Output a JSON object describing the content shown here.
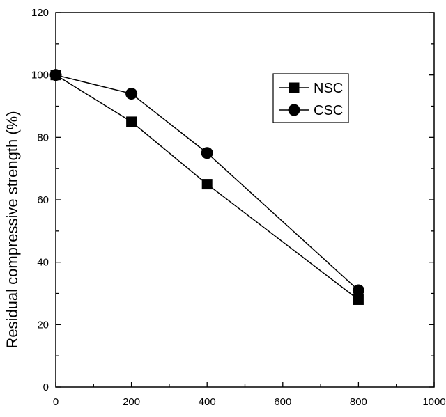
{
  "chart_data": {
    "type": "line",
    "xlabel": "",
    "ylabel": "Residual compressive strength (%)",
    "xlim": [
      0,
      1000
    ],
    "ylim": [
      0,
      120
    ],
    "x_ticks": [
      "0",
      "200",
      "400",
      "600",
      "800",
      "1000"
    ],
    "y_ticks": [
      "0",
      "20",
      "40",
      "60",
      "80",
      "100",
      "120"
    ],
    "grid": false,
    "legend_position": "top-right",
    "series": [
      {
        "name": "NSC",
        "marker": "square",
        "x": [
          0,
          200,
          400,
          800
        ],
        "y": [
          100,
          85,
          65,
          28
        ]
      },
      {
        "name": "CSC",
        "marker": "circle",
        "x": [
          0,
          200,
          400,
          800
        ],
        "y": [
          100,
          94,
          75,
          31
        ]
      }
    ],
    "colors": {
      "axis": "#000000",
      "series": "#000000",
      "background": "#ffffff"
    }
  }
}
